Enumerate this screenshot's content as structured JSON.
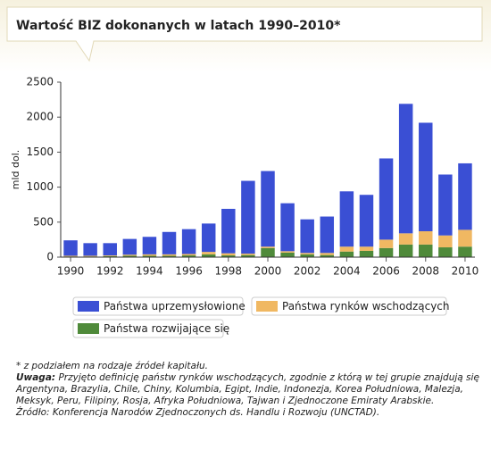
{
  "chart_data": {
    "type": "bar",
    "stacked": true,
    "title": "Wartość BIZ dokonanych w latach 1990–2010*",
    "y_label": "mld dol.",
    "categories": [
      "1990",
      null,
      "1992",
      null,
      "1994",
      null,
      "1996",
      null,
      "1998",
      null,
      "2000",
      null,
      "2002",
      null,
      "2004",
      null,
      "2006",
      null,
      "2008",
      null,
      "2010"
    ],
    "series": [
      {
        "name": "Państwa rozwijające się",
        "color": "#4f8a3a",
        "values": [
          10,
          10,
          15,
          20,
          20,
          20,
          25,
          40,
          25,
          30,
          130,
          65,
          40,
          30,
          80,
          90,
          130,
          180,
          180,
          140,
          150
        ]
      },
      {
        "name": "Państwa rynków wschodzących",
        "color": "#f0b862",
        "values": [
          10,
          10,
          10,
          15,
          20,
          20,
          20,
          35,
          30,
          20,
          20,
          20,
          20,
          30,
          70,
          60,
          120,
          160,
          190,
          170,
          240
        ]
      },
      {
        "name": "Państwa uprzemysłowione",
        "color": "#3a4fd4",
        "values": [
          220,
          180,
          175,
          225,
          250,
          320,
          355,
          405,
          635,
          1040,
          1080,
          685,
          480,
          520,
          790,
          740,
          1160,
          1850,
          1550,
          870,
          950
        ]
      }
    ],
    "ylim": [
      0,
      2500
    ],
    "yticks": [
      0,
      500,
      1000,
      1500,
      2000,
      2500
    ],
    "grid": false,
    "notes": {
      "footnote": "* z podziałem na rodzaje źródeł kapitału.",
      "note_label": "Uwaga:",
      "note_text": "Przyjęto definicję państw rynków wschodzących, zgodnie z którą w tej grupie znajdują się Argentyna, Brazylia, Chile, Chiny, Kolumbia, Egipt, Indie, Indonezja, Korea Południowa, Malezja, Meksyk, Peru, Filipiny, Rosja, Afryka Południowa, Tajwan i Zjednoczone Emiraty Arabskie.",
      "source_label": "Źródło:",
      "source_text": "Konferencja Narodów Zjednoczonych ds. Handlu i Rozwoju (UNCTAD)."
    }
  }
}
